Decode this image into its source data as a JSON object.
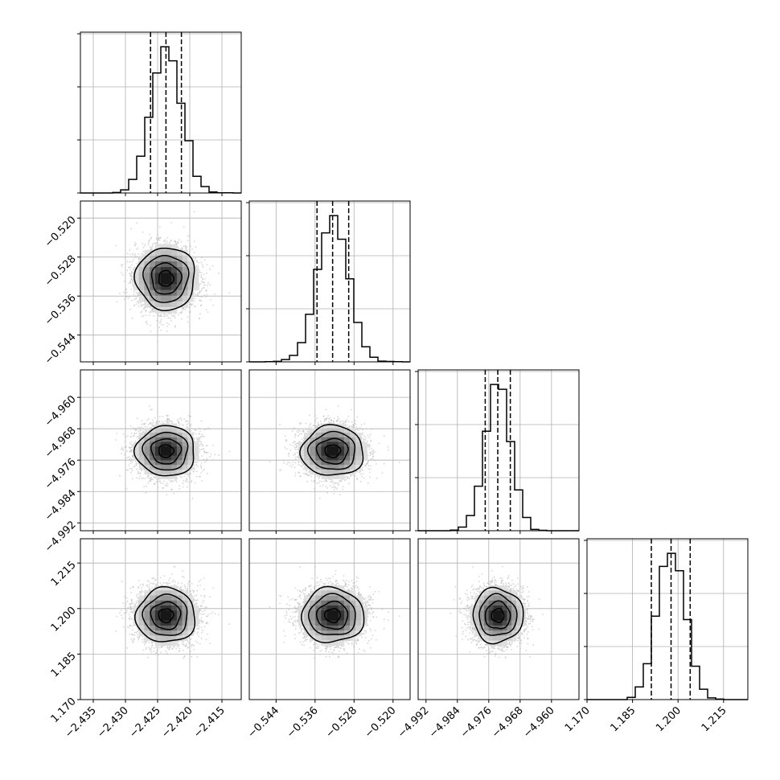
{
  "chart_data": {
    "type": "corner",
    "parameters": [
      {
        "range": [
          -2.437,
          -2.412
        ],
        "ticks": [
          -2.435,
          -2.43,
          -2.425,
          -2.42,
          -2.415
        ],
        "tick_labels": [
          "−2.435",
          "−2.430",
          "−2.425",
          "−2.420",
          "−2.415"
        ],
        "mean": -2.4237,
        "std": 0.0023,
        "quantiles": [
          -2.4261,
          -2.4237,
          -2.4213
        ]
      },
      {
        "range": [
          -0.5495,
          -0.5165
        ],
        "ticks": [
          -0.544,
          -0.536,
          -0.528,
          -0.52
        ],
        "tick_labels": [
          "−0.544",
          "−0.536",
          "−0.528",
          "−0.520"
        ],
        "mean": -0.5324,
        "std": 0.0032,
        "quantiles": [
          -0.5356,
          -0.5324,
          -0.5291
        ]
      },
      {
        "range": [
          -4.994,
          -4.953
        ],
        "ticks": [
          -4.992,
          -4.984,
          -4.976,
          -4.968,
          -4.96
        ],
        "tick_labels": [
          "−4.992",
          "−4.984",
          "−4.976",
          "−4.968",
          "−4.960"
        ],
        "mean": -4.9737,
        "std": 0.0032,
        "quantiles": [
          -4.9769,
          -4.9737,
          -4.9705
        ]
      },
      {
        "range": [
          1.17,
          1.223
        ],
        "ticks": [
          1.17,
          1.185,
          1.2,
          1.215
        ],
        "tick_labels": [
          "1.170",
          "1.185",
          "1.200",
          "1.215"
        ],
        "mean": 1.1977,
        "std": 0.0045,
        "quantiles": [
          1.1912,
          1.1977,
          1.204
        ]
      }
    ],
    "histogram_bins": 20,
    "contour_levels": [
      "0.5 sigma",
      "1.0 sigma",
      "1.5 sigma",
      "2.0 sigma"
    ],
    "quantile_lines": [
      0.16,
      0.5,
      0.84
    ],
    "grid": true,
    "colors": {
      "contour": "#000000",
      "hist": "#000000",
      "points": "#bbbbbb"
    }
  }
}
